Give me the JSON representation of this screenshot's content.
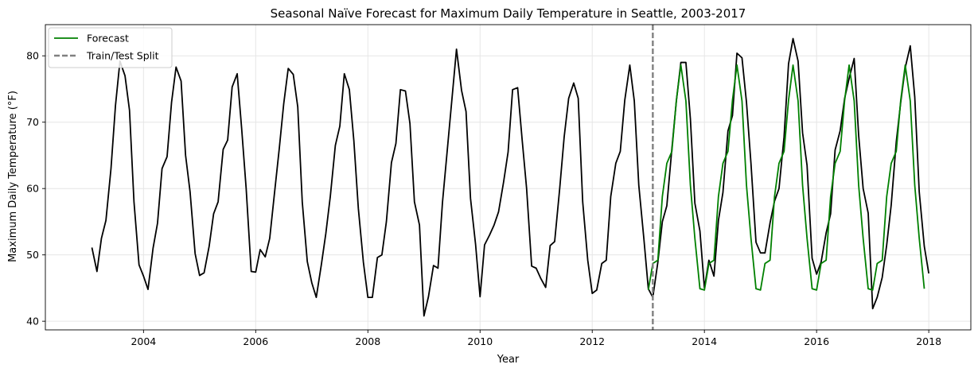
{
  "chart_data": {
    "type": "line",
    "title": "Seasonal Naïve Forecast for Maximum Daily Temperature in Seattle, 2003-2017",
    "xlabel": "Year",
    "ylabel": "Maximum Daily Temperature (°F)",
    "xlim": [
      2002.25,
      2018.75
    ],
    "ylim": [
      38.7,
      84.7
    ],
    "xticks": [
      2004,
      2006,
      2008,
      2010,
      2012,
      2014,
      2016,
      2018
    ],
    "yticks": [
      40,
      50,
      60,
      70,
      80
    ],
    "grid": true,
    "legend_position": "top-left",
    "split_year": 2013.08,
    "colors": {
      "observed": "#000000",
      "forecast": "#008000",
      "split": "#808080",
      "grid": "#e6e6e6"
    },
    "series": [
      {
        "name": "",
        "role": "observed",
        "x": [
          2003.08,
          2003.17,
          2003.25,
          2003.33,
          2003.42,
          2003.5,
          2003.58,
          2003.67,
          2003.75,
          2003.83,
          2003.92,
          2004.0,
          2004.08,
          2004.17,
          2004.25,
          2004.33,
          2004.42,
          2004.5,
          2004.58,
          2004.67,
          2004.75,
          2004.83,
          2004.92,
          2005.0,
          2005.08,
          2005.17,
          2005.25,
          2005.33,
          2005.42,
          2005.5,
          2005.58,
          2005.67,
          2005.75,
          2005.83,
          2005.92,
          2006.0,
          2006.08,
          2006.17,
          2006.25,
          2006.33,
          2006.42,
          2006.5,
          2006.58,
          2006.67,
          2006.75,
          2006.83,
          2006.92,
          2007.0,
          2007.08,
          2007.17,
          2007.25,
          2007.33,
          2007.42,
          2007.5,
          2007.58,
          2007.67,
          2007.75,
          2007.83,
          2007.92,
          2008.0,
          2008.08,
          2008.17,
          2008.25,
          2008.33,
          2008.42,
          2008.5,
          2008.58,
          2008.67,
          2008.75,
          2008.83,
          2008.92,
          2009.0,
          2009.08,
          2009.17,
          2009.25,
          2009.33,
          2009.42,
          2009.5,
          2009.58,
          2009.67,
          2009.75,
          2009.83,
          2009.92,
          2010.0,
          2010.08,
          2010.17,
          2010.25,
          2010.33,
          2010.42,
          2010.5,
          2010.58,
          2010.67,
          2010.75,
          2010.83,
          2010.92,
          2011.0,
          2011.08,
          2011.17,
          2011.25,
          2011.33,
          2011.42,
          2011.5,
          2011.58,
          2011.67,
          2011.75,
          2011.83,
          2011.92,
          2012.0,
          2012.08,
          2012.17,
          2012.25,
          2012.33,
          2012.42,
          2012.5,
          2012.58,
          2012.67,
          2012.75,
          2012.83,
          2012.92,
          2013.0,
          2013.08,
          2013.17,
          2013.25,
          2013.33,
          2013.42,
          2013.5,
          2013.58,
          2013.67,
          2013.75,
          2013.83,
          2013.92,
          2014.0,
          2014.08,
          2014.17,
          2014.25,
          2014.33,
          2014.42,
          2014.5,
          2014.58,
          2014.67,
          2014.75,
          2014.83,
          2014.92,
          2015.0,
          2015.08,
          2015.17,
          2015.25,
          2015.33,
          2015.42,
          2015.5,
          2015.58,
          2015.67,
          2015.75,
          2015.83,
          2015.92,
          2016.0,
          2016.08,
          2016.17,
          2016.25,
          2016.33,
          2016.42,
          2016.5,
          2016.58,
          2016.67,
          2016.75,
          2016.83,
          2016.92,
          2017.0,
          2017.08,
          2017.17,
          2017.25,
          2017.33,
          2017.42,
          2017.5,
          2017.58,
          2017.67,
          2017.75,
          2017.83,
          2017.92,
          2018.0
        ],
        "values": [
          51.1,
          47.5,
          52.5,
          55.2,
          63.0,
          72.5,
          79.2,
          77.0,
          71.8,
          58.0,
          48.5,
          46.8,
          44.8,
          51.0,
          54.8,
          63.0,
          64.8,
          73.0,
          78.3,
          76.2,
          65.0,
          59.5,
          50.2,
          46.9,
          47.3,
          51.3,
          56.2,
          58.0,
          65.9,
          67.3,
          75.3,
          77.3,
          69.0,
          60.0,
          47.5,
          47.4,
          50.8,
          49.7,
          52.5,
          58.9,
          66.0,
          72.8,
          78.1,
          77.2,
          72.3,
          58.0,
          49.0,
          45.8,
          43.6,
          48.5,
          53.2,
          58.8,
          66.5,
          69.4,
          77.3,
          74.9,
          67.2,
          57.0,
          48.9,
          43.6,
          43.6,
          49.6,
          50.0,
          55.0,
          63.9,
          66.8,
          74.9,
          74.7,
          69.8,
          58.0,
          54.5,
          40.8,
          43.7,
          48.4,
          48.0,
          57.9,
          66.2,
          73.6,
          81.0,
          74.8,
          71.6,
          58.5,
          51.6,
          43.7,
          51.5,
          53.0,
          54.5,
          56.5,
          61.0,
          65.5,
          74.9,
          75.2,
          67.4,
          60.0,
          48.3,
          48.0,
          46.5,
          45.1,
          51.4,
          52.0,
          60.0,
          67.8,
          73.6,
          75.9,
          73.6,
          58.0,
          49.2,
          44.2,
          44.7,
          48.7,
          49.2,
          58.8,
          63.8,
          65.6,
          73.3,
          78.6,
          73.2,
          60.5,
          52.5,
          44.9,
          43.6,
          48.9,
          55.0,
          57.4,
          66.0,
          73.2,
          79.0,
          79.0,
          70.5,
          57.8,
          53.6,
          45.0,
          49.2,
          46.8,
          55.2,
          59.4,
          68.7,
          71.0,
          80.4,
          79.7,
          73.0,
          63.8,
          51.9,
          50.3,
          50.3,
          54.8,
          58.1,
          60.0,
          67.8,
          78.8,
          82.6,
          79.2,
          68.4,
          63.5,
          49.5,
          47.1,
          48.9,
          53.3,
          56.2,
          65.8,
          68.7,
          73.6,
          76.6,
          79.6,
          68.0,
          60.0,
          56.3,
          41.9,
          43.6,
          46.6,
          51.5,
          57.5,
          67.0,
          73.0,
          78.2,
          81.5,
          73.8,
          59.5,
          51.3,
          47.2
        ]
      },
      {
        "name": "Forecast",
        "role": "forecast",
        "x": [
          2013.0,
          2013.08,
          2013.17,
          2013.25,
          2013.33,
          2013.42,
          2013.5,
          2013.58,
          2013.67,
          2013.75,
          2013.83,
          2013.92,
          2014.0,
          2014.08,
          2014.17,
          2014.25,
          2014.33,
          2014.42,
          2014.5,
          2014.58,
          2014.67,
          2014.75,
          2014.83,
          2014.92,
          2015.0,
          2015.08,
          2015.17,
          2015.25,
          2015.33,
          2015.42,
          2015.5,
          2015.58,
          2015.67,
          2015.75,
          2015.83,
          2015.92,
          2016.0,
          2016.08,
          2016.17,
          2016.25,
          2016.33,
          2016.42,
          2016.5,
          2016.58,
          2016.67,
          2016.75,
          2016.83,
          2016.92,
          2017.0,
          2017.08,
          2017.17,
          2017.25,
          2017.33,
          2017.42,
          2017.5,
          2017.58,
          2017.67,
          2017.75,
          2017.83,
          2017.92
        ],
        "values": [
          44.7,
          48.7,
          49.2,
          58.8,
          63.8,
          65.6,
          73.3,
          78.6,
          73.2,
          60.5,
          52.5,
          44.9,
          44.7,
          48.7,
          49.2,
          58.8,
          63.8,
          65.6,
          73.3,
          78.6,
          73.2,
          60.5,
          52.5,
          44.9,
          44.7,
          48.7,
          49.2,
          58.8,
          63.8,
          65.6,
          73.3,
          78.6,
          73.2,
          60.5,
          52.5,
          44.9,
          44.7,
          48.7,
          49.2,
          58.8,
          63.8,
          65.6,
          73.3,
          78.6,
          73.2,
          60.5,
          52.5,
          44.9,
          44.7,
          48.7,
          49.2,
          58.8,
          63.8,
          65.6,
          73.3,
          78.6,
          73.2,
          60.5,
          52.5,
          44.9
        ]
      }
    ],
    "legend": [
      {
        "label": "Forecast",
        "style": "solid",
        "color": "#008000"
      },
      {
        "label": "Train/Test Split",
        "style": "dashed",
        "color": "#808080"
      }
    ]
  }
}
